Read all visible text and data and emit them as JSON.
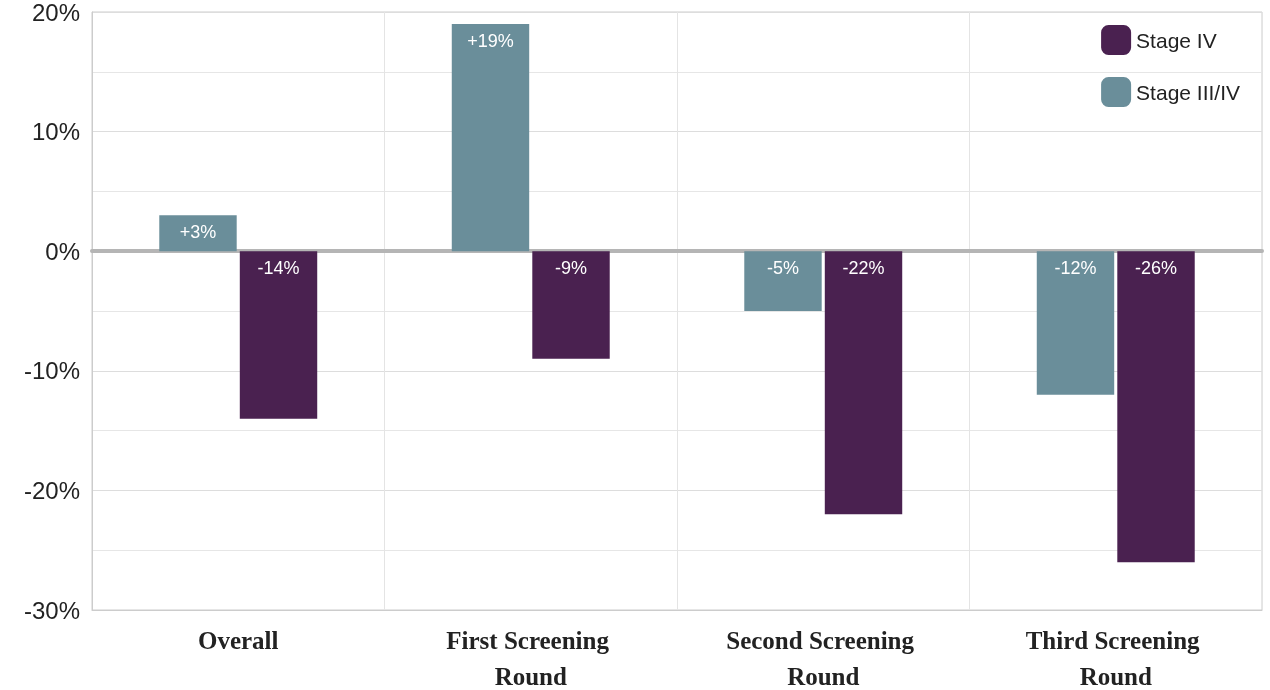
{
  "chart_data": {
    "type": "bar",
    "categories": [
      "Overall",
      "First Screening Round",
      "Second Screening Round",
      "Third Screening Round"
    ],
    "series": [
      {
        "name": "Stage III/IV",
        "color": "#6a8e9a",
        "values": [
          3,
          19,
          -5,
          -12
        ],
        "value_labels": [
          "+3%",
          "+19%",
          "-5%",
          "-12%"
        ]
      },
      {
        "name": "Stage IV",
        "color": "#4a2150",
        "values": [
          -14,
          -9,
          -22,
          -26
        ],
        "value_labels": [
          "-14%",
          "-9%",
          "-22%",
          "-26%"
        ]
      }
    ],
    "ylim": [
      -30,
      20
    ],
    "yticks": [
      {
        "value": -30,
        "label": "-30%"
      },
      {
        "value": -20,
        "label": "-20%"
      },
      {
        "value": -10,
        "label": "-10%"
      },
      {
        "value": 0,
        "label": "0%"
      },
      {
        "value": 10,
        "label": "10%"
      },
      {
        "value": 20,
        "label": "20%"
      }
    ],
    "grid": true,
    "legend": "top right"
  }
}
